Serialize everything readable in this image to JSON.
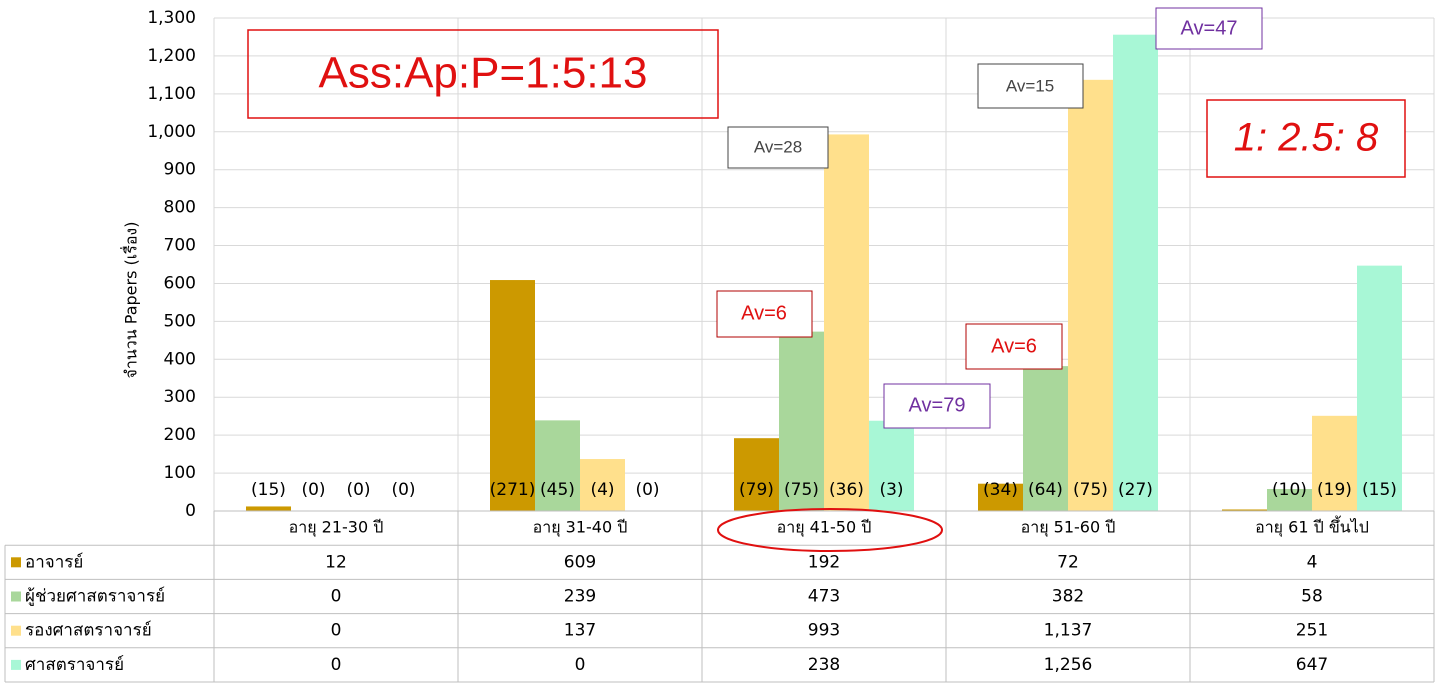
{
  "chart_data": {
    "type": "bar",
    "y_axis_label": "จำนวน Papers (เรื่อง)",
    "categories": [
      "อายุ 21-30 ปี",
      "อายุ 31-40 ปี",
      "อายุ 41-50 ปี",
      "อายุ 51-60 ปี",
      "อายุ 61 ปี ขึ้นไป"
    ],
    "series": [
      {
        "name": "อาจารย์",
        "color": "#cc9900",
        "values": [
          12,
          609,
          192,
          72,
          4
        ],
        "count_labels": [
          "(15)",
          "(271)",
          "(79)",
          "(34)",
          null
        ]
      },
      {
        "name": "ผู้ช่วยศาสตราจารย์",
        "color": "#a9d79b",
        "values": [
          0,
          239,
          473,
          382,
          58
        ],
        "count_labels": [
          "(0)",
          "(45)",
          "(75)",
          "(64)",
          "(10)"
        ]
      },
      {
        "name": "รองศาสตราจารย์",
        "color": "#ffe08c",
        "values": [
          0,
          137,
          993,
          1137,
          251
        ],
        "value_labels": [
          "0",
          "137",
          "993",
          "1,137",
          "251"
        ],
        "count_labels": [
          "(0)",
          "(4)",
          "(36)",
          "(75)",
          "(19)"
        ]
      },
      {
        "name": "ศาสตราจารย์",
        "color": "#a8f7d6",
        "values": [
          0,
          0,
          238,
          1256,
          647
        ],
        "value_labels": [
          "0",
          "0",
          "238",
          "1,256",
          "647"
        ],
        "count_labels": [
          "(0)",
          "(0)",
          "(3)",
          "(27)",
          "(15)"
        ]
      }
    ],
    "ylim": [
      0,
      1300
    ],
    "yticks": [
      0,
      100,
      200,
      300,
      400,
      500,
      600,
      700,
      800,
      900,
      {
        "value": 1000,
        "label": "1,000"
      },
      {
        "value": 1100,
        "label": "1,100"
      },
      {
        "value": 1200,
        "label": "1,200"
      },
      {
        "value": 1300,
        "label": "1,300"
      }
    ],
    "grid": true,
    "annotations": [
      "Ass:Ap:P=1:5:13",
      "1: 2.5: 8",
      "Av=28",
      "Av=6",
      "Av=79",
      "Av=15",
      "Av=6",
      "Av=47"
    ]
  }
}
